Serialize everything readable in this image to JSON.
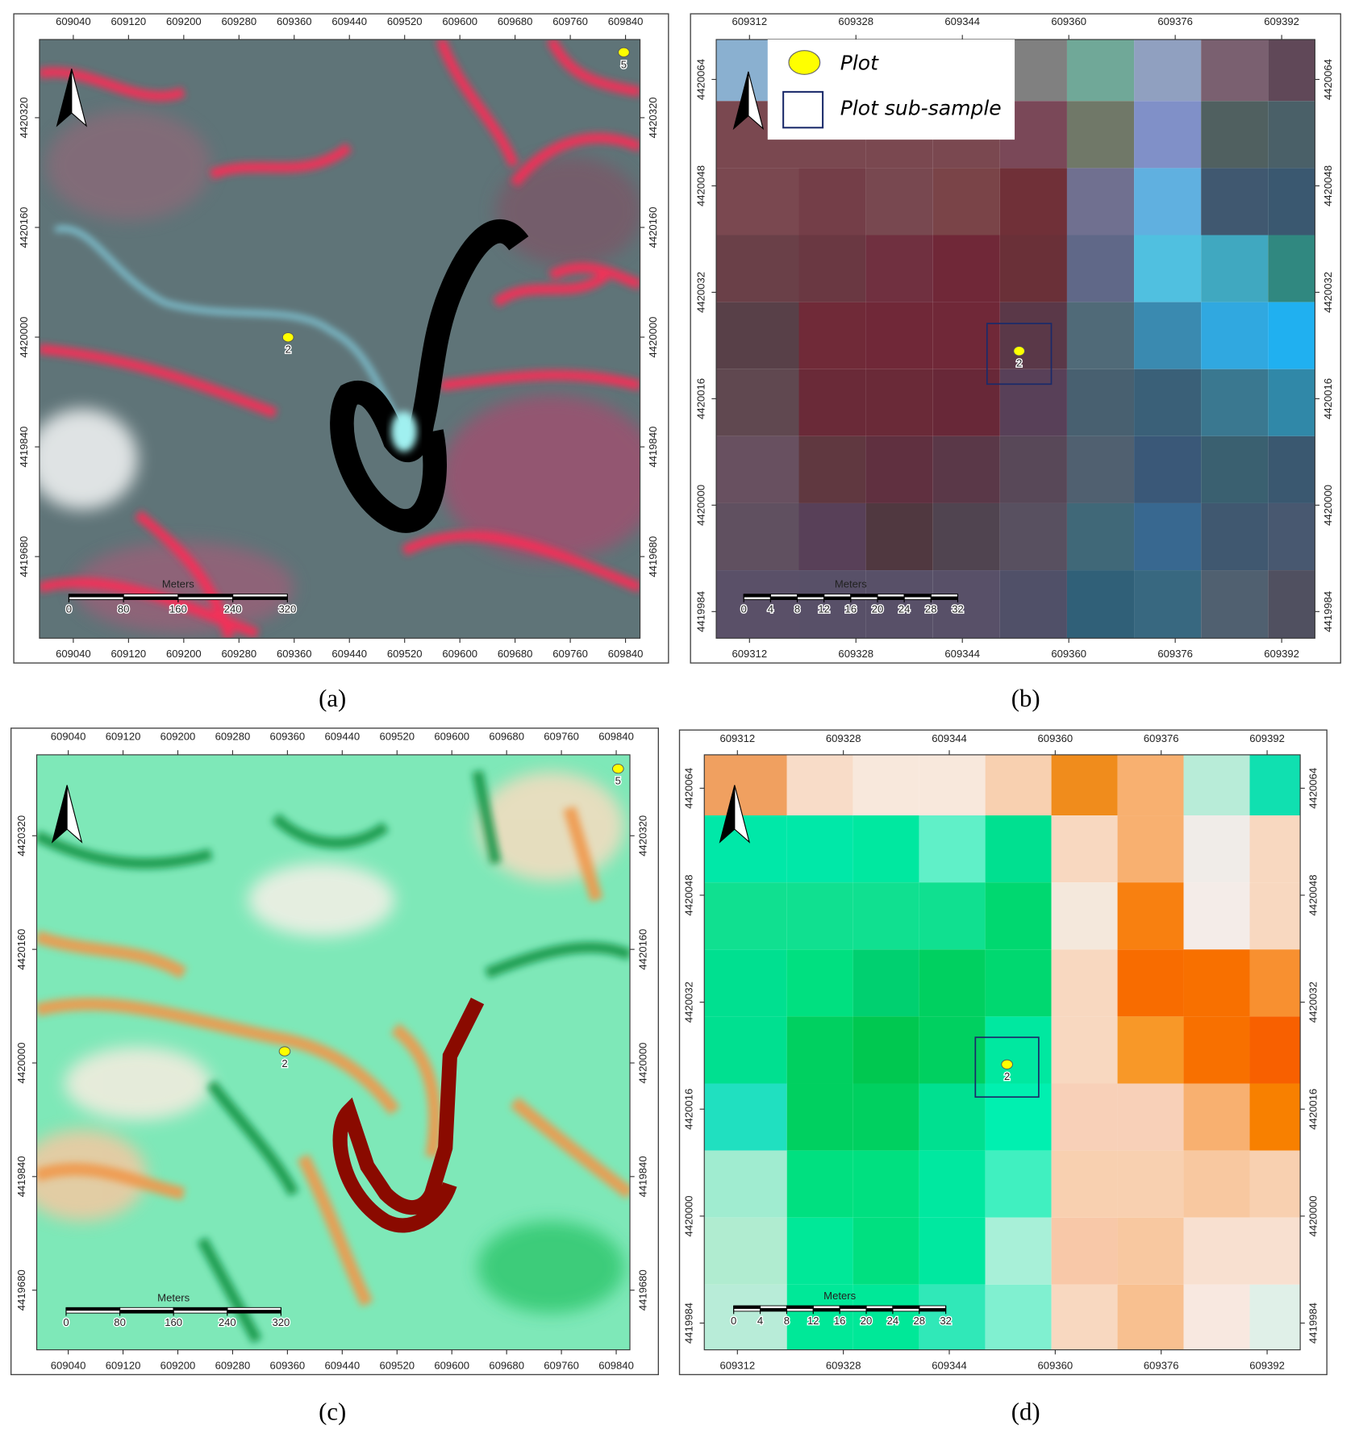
{
  "panels": [
    {
      "caption": "(a)",
      "xticks": [
        609040,
        609120,
        609200,
        609280,
        609360,
        609440,
        609520,
        609600,
        609680,
        609760,
        609840
      ],
      "xlim": [
        608991,
        609861
      ],
      "yticks": [
        4420320,
        4420160,
        4420000,
        4419840,
        4419680
      ],
      "ylim": [
        4419561,
        4420434
      ],
      "scale_bar": {
        "title": "Meters",
        "labels": [
          0,
          80,
          160,
          240,
          320
        ]
      },
      "point_labels": [
        "2",
        "5"
      ]
    },
    {
      "caption": "(b)",
      "xticks": [
        609312,
        609328,
        609344,
        609360,
        609376,
        609392
      ],
      "xlim": [
        609307,
        609397
      ],
      "yticks": [
        4420064,
        4420048,
        4420032,
        4420016,
        4420000,
        4419984
      ],
      "ylim": [
        4419980,
        4420070
      ],
      "scale_bar": {
        "title": "Meters",
        "labels": [
          0,
          4,
          8,
          12,
          16,
          20,
          24,
          28,
          32
        ]
      },
      "point_labels": [
        "2"
      ],
      "legend": [
        "Plot",
        "Plot sub-sample"
      ]
    },
    {
      "caption": "(c)",
      "xticks": [
        609040,
        609120,
        609200,
        609280,
        609360,
        609440,
        609520,
        609600,
        609680,
        609760,
        609840
      ],
      "xlim": [
        608994,
        609860
      ],
      "yticks": [
        4420320,
        4420160,
        4420000,
        4419840,
        4419680
      ],
      "ylim": [
        4419596,
        4420434
      ],
      "scale_bar": {
        "title": "Meters",
        "labels": [
          0,
          80,
          160,
          240,
          320
        ]
      },
      "point_labels": [
        "2",
        "5"
      ]
    },
    {
      "caption": "(d)",
      "xticks": [
        609312,
        609328,
        609344,
        609360,
        609376,
        609392
      ],
      "xlim": [
        609307,
        609397
      ],
      "yticks": [
        4420064,
        4420048,
        4420032,
        4420016,
        4420000,
        4419984
      ],
      "ylim": [
        4419980,
        4420069
      ],
      "scale_bar": {
        "title": "Meters",
        "labels": [
          0,
          4,
          8,
          12,
          16,
          20,
          24,
          28,
          32
        ]
      },
      "point_labels": [
        "2"
      ]
    }
  ]
}
